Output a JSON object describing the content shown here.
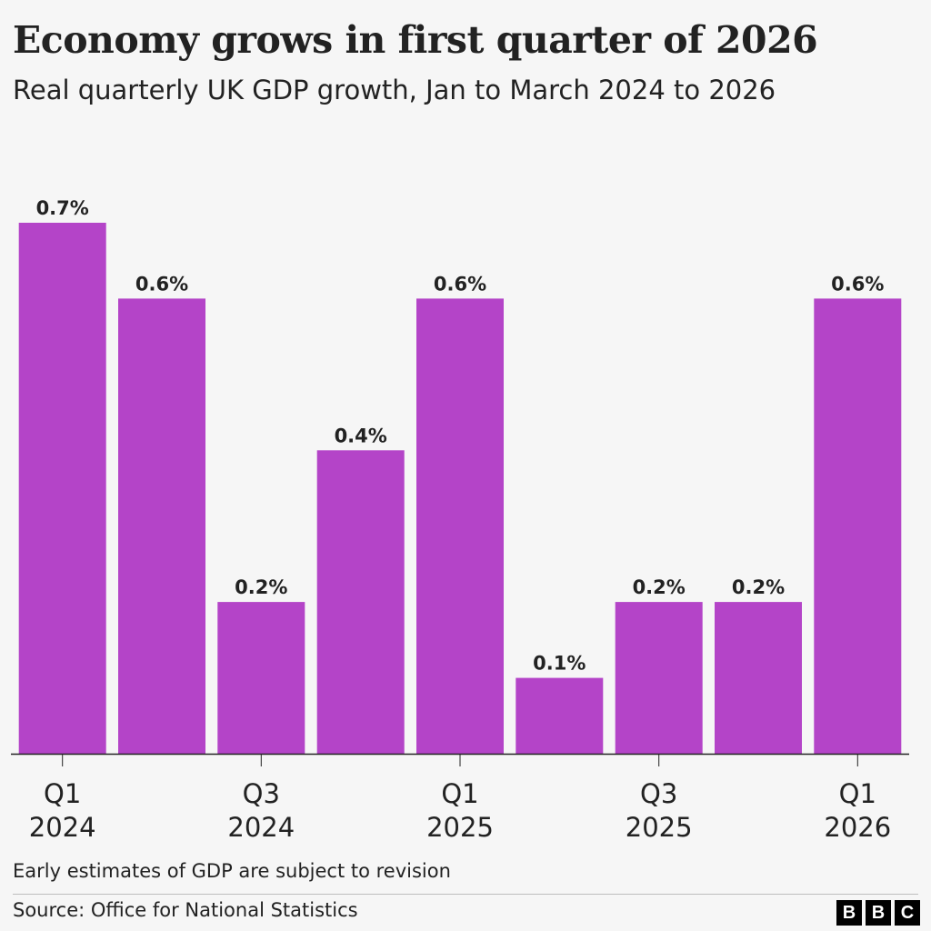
{
  "header": {
    "title": "Economy grows in first quarter of 2026",
    "subtitle": "Real quarterly UK GDP growth, Jan to March 2024 to 2026"
  },
  "footer": {
    "note": "Early estimates of GDP are subject to revision",
    "source": "Source: Office for National Statistics",
    "logo_letters": [
      "B",
      "B",
      "C"
    ]
  },
  "colors": {
    "bar": "#b444c8",
    "background": "#f6f6f6",
    "text": "#222222",
    "axis": "#222222"
  },
  "chart_data": {
    "type": "bar",
    "title": "Economy grows in first quarter of 2026",
    "subtitle": "Real quarterly UK GDP growth, Jan to March 2024 to 2026",
    "categories": [
      "Q1 2024",
      "Q2 2024",
      "Q3 2024",
      "Q4 2024",
      "Q1 2025",
      "Q2 2025",
      "Q3 2025",
      "Q4 2025",
      "Q1 2026"
    ],
    "values": [
      0.7,
      0.6,
      0.2,
      0.4,
      0.6,
      0.1,
      0.2,
      0.2,
      0.6
    ],
    "data_labels": [
      "0.7%",
      "0.6%",
      "0.2%",
      "0.4%",
      "0.6%",
      "0.1%",
      "0.2%",
      "0.2%",
      "0.6%"
    ],
    "tick_labels": [
      {
        "category_index": 0,
        "lines": [
          "Q1",
          "2024"
        ]
      },
      {
        "category_index": 2,
        "lines": [
          "Q3",
          "2024"
        ]
      },
      {
        "category_index": 4,
        "lines": [
          "Q1",
          "2025"
        ]
      },
      {
        "category_index": 6,
        "lines": [
          "Q3",
          "2025"
        ]
      },
      {
        "category_index": 8,
        "lines": [
          "Q1",
          "2026"
        ]
      }
    ],
    "unit": "%",
    "ylim": [
      0,
      0.7
    ],
    "grid": false,
    "legend": "none"
  }
}
